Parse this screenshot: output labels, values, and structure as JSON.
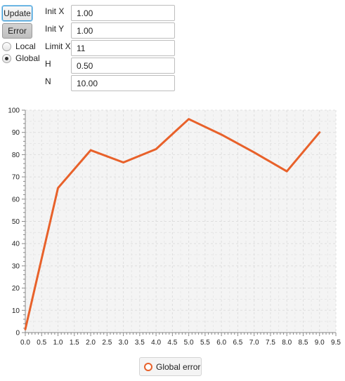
{
  "controls": {
    "update_label": "Update",
    "error_label": "Error",
    "radio_local": "Local",
    "radio_global": "Global",
    "selected_mode": "Global"
  },
  "fields": [
    {
      "label": "Init X",
      "value": "1.00"
    },
    {
      "label": "Init Y",
      "value": "1.00"
    },
    {
      "label": "Limit X",
      "value": "11"
    },
    {
      "label": "H",
      "value": "0.50"
    },
    {
      "label": "N",
      "value": "10.00"
    }
  ],
  "colors": {
    "series": "#e8612a",
    "plot_bg": "#f4f4f4",
    "grid": "#dedede",
    "axis": "#888888"
  },
  "chart_data": {
    "type": "line",
    "title": "",
    "xlabel": "",
    "ylabel": "",
    "xlim": [
      0,
      9.5
    ],
    "ylim": [
      0,
      100
    ],
    "x_ticks": [
      "0.0",
      "0.5",
      "1.0",
      "1.5",
      "2.0",
      "2.5",
      "3.0",
      "3.5",
      "4.0",
      "4.5",
      "5.0",
      "5.5",
      "6.0",
      "6.5",
      "7.0",
      "7.5",
      "8.0",
      "8.5",
      "9.0",
      "9.5"
    ],
    "y_ticks": [
      "0",
      "10",
      "20",
      "30",
      "40",
      "50",
      "60",
      "70",
      "80",
      "90",
      "100"
    ],
    "grid": true,
    "legend_position": "bottom-center",
    "series": [
      {
        "name": "Global error",
        "x": [
          0,
          1,
          2,
          3,
          4,
          5,
          6,
          7,
          8,
          9
        ],
        "y": [
          1.5,
          65,
          82,
          76.5,
          82.5,
          96,
          89,
          81,
          72.5,
          90
        ]
      }
    ]
  }
}
